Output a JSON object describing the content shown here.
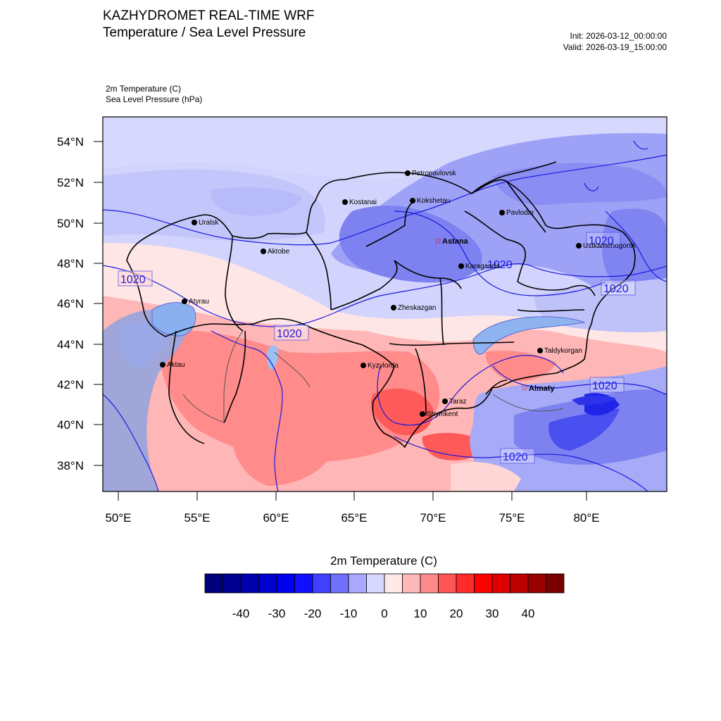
{
  "title": "KAZHYDROMET REAL-TIME WRF",
  "subtitle": "Temperature / Sea Level Pressure",
  "init": "Init: 2026-03-12_00:00:00",
  "valid": "Valid: 2026-03-19_15:00:00",
  "field_labels": [
    "2m Temperature   (C)",
    "Sea Level Pressure   (hPa)"
  ],
  "map": {
    "lat_ticks": [
      "54°N",
      "52°N",
      "50°N",
      "48°N",
      "46°N",
      "44°N",
      "42°N",
      "40°N",
      "38°N"
    ],
    "lon_ticks": [
      "50°E",
      "55°E",
      "60°E",
      "65°E",
      "70°E",
      "75°E",
      "80°E"
    ],
    "cities": [
      {
        "name": "Petropavlovsk",
        "capital": false
      },
      {
        "name": "Kostanai",
        "capital": false
      },
      {
        "name": "Kokshetau",
        "capital": false
      },
      {
        "name": "Pavlodar",
        "capital": false
      },
      {
        "name": "Uralsk",
        "capital": false
      },
      {
        "name": "Aktobe",
        "capital": false
      },
      {
        "name": "Astana",
        "capital": true
      },
      {
        "name": "Ustkamenogorsk",
        "capital": false
      },
      {
        "name": "Karaganda",
        "capital": false
      },
      {
        "name": "Atyrau",
        "capital": false
      },
      {
        "name": "Zheskazgan",
        "capital": false
      },
      {
        "name": "Taldykorgan",
        "capital": false
      },
      {
        "name": "Aktau",
        "capital": false
      },
      {
        "name": "Kyzylorda",
        "capital": false
      },
      {
        "name": "Almaty",
        "capital": true
      },
      {
        "name": "Taraz",
        "capital": false
      },
      {
        "name": "Shymkent",
        "capital": false
      }
    ],
    "isobar_labels": [
      "1020",
      "1020",
      "1020",
      "1020",
      "1020",
      "1020",
      "1020"
    ]
  },
  "colorbar": {
    "title": "2m Temperature  (C)",
    "tick_labels": [
      "-40",
      "-30",
      "-20",
      "-10",
      "0",
      "10",
      "20",
      "30",
      "40"
    ],
    "colors": [
      "#00007a",
      "#00008f",
      "#0000b0",
      "#0000d0",
      "#0000ee",
      "#1010ff",
      "#4040ff",
      "#7070ff",
      "#a8a8ff",
      "#d8d8ff",
      "#ffe8e8",
      "#ffb8b8",
      "#ff8a8a",
      "#ff5555",
      "#ff2a2a",
      "#ff0000",
      "#dd0000",
      "#bb0000",
      "#9a0000",
      "#7a0000"
    ]
  }
}
